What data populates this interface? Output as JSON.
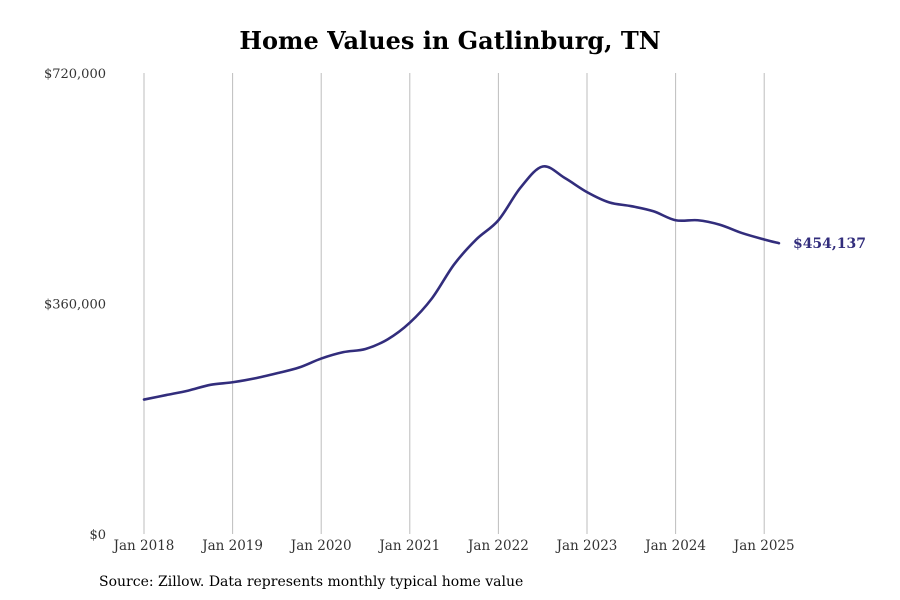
{
  "chart_data": {
    "type": "line",
    "title": "Home Values in Gatlinburg, TN",
    "xlabel": "",
    "ylabel": "",
    "ylim": [
      0,
      720000
    ],
    "xlim": [
      "2018-01",
      "2025-04"
    ],
    "y_ticks": [
      {
        "value": 0,
        "label": "$0"
      },
      {
        "value": 360000,
        "label": "$360,000"
      },
      {
        "value": 720000,
        "label": "$720,000"
      }
    ],
    "x_ticks": [
      {
        "date": "2018-01",
        "label": "Jan 2018"
      },
      {
        "date": "2019-01",
        "label": "Jan 2019"
      },
      {
        "date": "2020-01",
        "label": "Jan 2020"
      },
      {
        "date": "2021-01",
        "label": "Jan 2021"
      },
      {
        "date": "2022-01",
        "label": "Jan 2022"
      },
      {
        "date": "2023-01",
        "label": "Jan 2023"
      },
      {
        "date": "2024-01",
        "label": "Jan 2024"
      },
      {
        "date": "2025-01",
        "label": "Jan 2025"
      }
    ],
    "grid": {
      "vertical": true,
      "horizontal": false
    },
    "series": [
      {
        "color": "#322d7c",
        "points": [
          {
            "x": "2018-01",
            "y": 210000
          },
          {
            "x": "2018-04",
            "y": 217000
          },
          {
            "x": "2018-07",
            "y": 224000
          },
          {
            "x": "2018-10",
            "y": 233000
          },
          {
            "x": "2019-01",
            "y": 237000
          },
          {
            "x": "2019-04",
            "y": 243000
          },
          {
            "x": "2019-07",
            "y": 251000
          },
          {
            "x": "2019-10",
            "y": 260000
          },
          {
            "x": "2020-01",
            "y": 274000
          },
          {
            "x": "2020-04",
            "y": 284000
          },
          {
            "x": "2020-07",
            "y": 289000
          },
          {
            "x": "2020-10",
            "y": 304000
          },
          {
            "x": "2021-01",
            "y": 330000
          },
          {
            "x": "2021-04",
            "y": 368000
          },
          {
            "x": "2021-07",
            "y": 421000
          },
          {
            "x": "2021-10",
            "y": 460000
          },
          {
            "x": "2022-01",
            "y": 490000
          },
          {
            "x": "2022-04",
            "y": 541000
          },
          {
            "x": "2022-07",
            "y": 574000
          },
          {
            "x": "2022-10",
            "y": 556000
          },
          {
            "x": "2023-01",
            "y": 534000
          },
          {
            "x": "2023-04",
            "y": 518000
          },
          {
            "x": "2023-07",
            "y": 512000
          },
          {
            "x": "2023-10",
            "y": 504000
          },
          {
            "x": "2024-01",
            "y": 490000
          },
          {
            "x": "2024-04",
            "y": 490000
          },
          {
            "x": "2024-07",
            "y": 483000
          },
          {
            "x": "2024-10",
            "y": 470000
          },
          {
            "x": "2025-01",
            "y": 460000
          },
          {
            "x": "2025-03",
            "y": 454137
          }
        ]
      }
    ],
    "annotations": [
      {
        "label": "$454,137",
        "x": "2025-03",
        "y": 454137
      }
    ]
  },
  "source": "Source: Zillow. Data represents monthly typical home value"
}
